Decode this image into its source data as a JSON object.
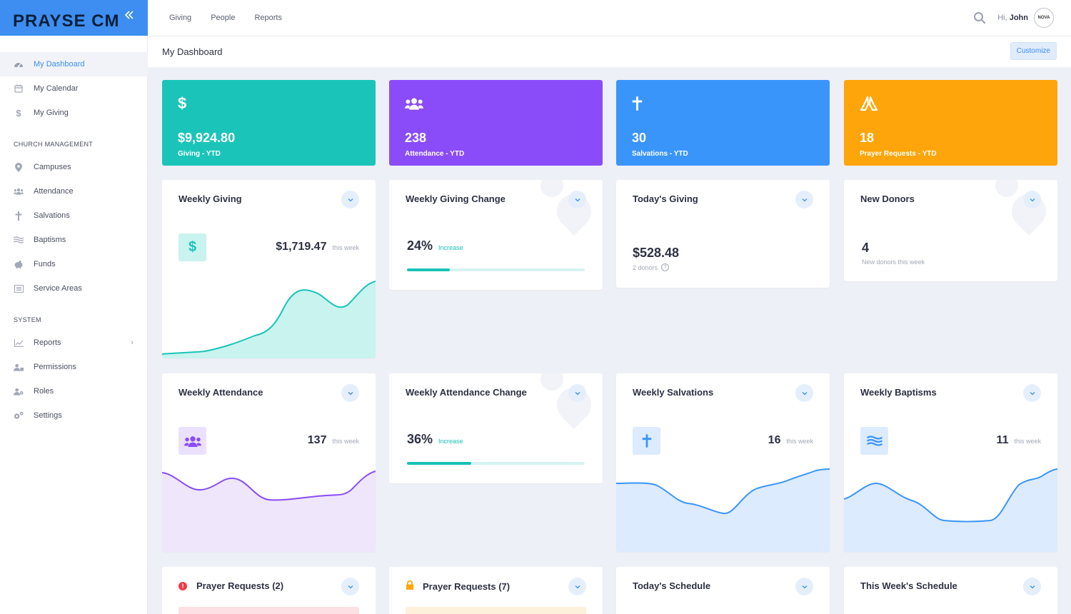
{
  "app": {
    "logo": "PRAYSE CMS",
    "collapse_icon": "double-chevron-left-icon"
  },
  "sidebar": {
    "items_main": [
      {
        "label": "My Dashboard",
        "icon": "dashboard-icon",
        "active": true
      },
      {
        "label": "My Calendar",
        "icon": "calendar-icon"
      },
      {
        "label": "My Giving",
        "icon": "dollar-icon"
      }
    ],
    "section_church": "CHURCH MANAGEMENT",
    "items_church": [
      {
        "label": "Campuses",
        "icon": "map-pin-icon"
      },
      {
        "label": "Attendance",
        "icon": "users-icon"
      },
      {
        "label": "Salvations",
        "icon": "cross-icon"
      },
      {
        "label": "Baptisms",
        "icon": "water-icon"
      },
      {
        "label": "Funds",
        "icon": "piggy-bank-icon"
      },
      {
        "label": "Service Areas",
        "icon": "list-icon"
      }
    ],
    "section_system": "SYSTEM",
    "items_system": [
      {
        "label": "Reports",
        "icon": "chart-icon",
        "has_children": true
      },
      {
        "label": "Permissions",
        "icon": "user-lock-icon"
      },
      {
        "label": "Roles",
        "icon": "user-cog-icon"
      },
      {
        "label": "Settings",
        "icon": "gears-icon"
      }
    ]
  },
  "topbar": {
    "nav": [
      "Giving",
      "People",
      "Reports"
    ],
    "greeting_prefix": "Hi,",
    "user_name": "John",
    "avatar_text": "NOVA"
  },
  "page": {
    "title": "My Dashboard",
    "customize_label": "Customize"
  },
  "stats": [
    {
      "value": "$9,924.80",
      "label": "Giving - YTD",
      "color": "#1bc4b9",
      "icon": "dollar-icon"
    },
    {
      "value": "238",
      "label": "Attendance - YTD",
      "color": "#8a4cf8",
      "icon": "users-icon"
    },
    {
      "value": "30",
      "label": "Salvations - YTD",
      "color": "#3a95fb",
      "icon": "cross-icon"
    },
    {
      "value": "18",
      "label": "Prayer Requests - YTD",
      "color": "#fda50a",
      "icon": "praying-hands-icon"
    }
  ],
  "cards": {
    "weekly_giving": {
      "title": "Weekly Giving",
      "value": "$1,719.47",
      "sub": "this week"
    },
    "weekly_giving_change": {
      "title": "Weekly Giving Change",
      "value": "24%",
      "sub": "Increase",
      "progress": 0.24
    },
    "todays_giving": {
      "title": "Today's Giving",
      "value": "$528.48",
      "sub": "2 donors",
      "help_icon": "?"
    },
    "new_donors": {
      "title": "New Donors",
      "value": "4",
      "sub": "New donors this week"
    },
    "weekly_attendance": {
      "title": "Weekly Attendance",
      "value": "137",
      "sub": "this week"
    },
    "weekly_attendance_change": {
      "title": "Weekly Attendance Change",
      "value": "36%",
      "sub": "Increase",
      "progress": 0.36
    },
    "weekly_salvations": {
      "title": "Weekly Salvations",
      "value": "16",
      "sub": "this week"
    },
    "weekly_baptisms": {
      "title": "Weekly Baptisms",
      "value": "11",
      "sub": "this week"
    },
    "prayer_requests_urgent": {
      "title": "Prayer Requests (2)",
      "alert_icon": "!"
    },
    "prayer_requests_private": {
      "title": "Prayer Requests (7)"
    },
    "todays_schedule": {
      "title": "Today's Schedule"
    },
    "this_weeks_schedule": {
      "title": "This Week's Schedule"
    }
  },
  "colors": {
    "accent": "#3d8ef0",
    "teal": "#1bc4b9",
    "purple": "#8a4cf8",
    "blue": "#3a95fb",
    "orange": "#fda50a"
  }
}
